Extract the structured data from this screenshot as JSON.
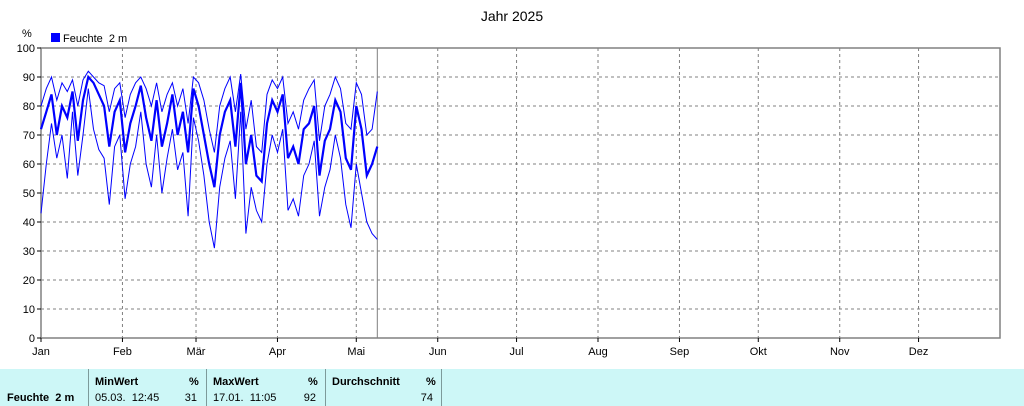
{
  "chart_data": {
    "type": "line",
    "title": "Jahr 2025",
    "ylabel": "%",
    "ylim": [
      0,
      100
    ],
    "yticks": [
      0,
      10,
      20,
      30,
      40,
      50,
      60,
      70,
      80,
      90,
      100
    ],
    "xlim": [
      0,
      365
    ],
    "xticks": [
      {
        "day": 0,
        "label": "Jan"
      },
      {
        "day": 31,
        "label": "Feb"
      },
      {
        "day": 59,
        "label": "Mär"
      },
      {
        "day": 90,
        "label": "Apr"
      },
      {
        "day": 120,
        "label": "Mai"
      },
      {
        "day": 151,
        "label": "Jun"
      },
      {
        "day": 181,
        "label": "Jul"
      },
      {
        "day": 212,
        "label": "Aug"
      },
      {
        "day": 243,
        "label": "Sep"
      },
      {
        "day": 273,
        "label": "Okt"
      },
      {
        "day": 304,
        "label": "Nov"
      },
      {
        "day": 334,
        "label": "Dez"
      }
    ],
    "grid": true,
    "legend": "top-left",
    "current_day_marker": 128,
    "series": [
      {
        "name": "Feuchte  2 m",
        "color": "#0000ff",
        "x": [
          0,
          2,
          4,
          6,
          8,
          10,
          12,
          14,
          16,
          18,
          20,
          22,
          24,
          26,
          28,
          30,
          32,
          34,
          36,
          38,
          40,
          42,
          44,
          46,
          48,
          50,
          52,
          54,
          56,
          58,
          60,
          62,
          64,
          66,
          68,
          70,
          72,
          74,
          76,
          78,
          80,
          82,
          84,
          86,
          88,
          90,
          92,
          94,
          96,
          98,
          100,
          102,
          104,
          106,
          108,
          110,
          112,
          114,
          116,
          118,
          120,
          122,
          124,
          126,
          128
        ],
        "avg": [
          72,
          78,
          84,
          70,
          80,
          76,
          85,
          68,
          82,
          90,
          88,
          84,
          80,
          66,
          78,
          82,
          64,
          74,
          80,
          87,
          76,
          68,
          82,
          66,
          74,
          84,
          70,
          78,
          64,
          86,
          80,
          70,
          60,
          52,
          70,
          78,
          82,
          66,
          88,
          60,
          70,
          56,
          54,
          74,
          82,
          78,
          84,
          62,
          66,
          60,
          72,
          74,
          80,
          56,
          68,
          72,
          82,
          78,
          62,
          58,
          80,
          72,
          56,
          60,
          66
        ],
        "max": [
          80,
          86,
          90,
          82,
          88,
          85,
          89,
          80,
          89,
          92,
          90,
          88,
          87,
          78,
          86,
          88,
          76,
          84,
          88,
          90,
          86,
          80,
          88,
          78,
          84,
          88,
          80,
          86,
          74,
          90,
          88,
          82,
          72,
          64,
          80,
          86,
          90,
          78,
          91,
          72,
          82,
          66,
          64,
          84,
          89,
          86,
          90,
          74,
          78,
          72,
          82,
          86,
          89,
          68,
          80,
          84,
          90,
          86,
          74,
          72,
          88,
          84,
          70,
          72,
          85
        ],
        "min": [
          43,
          60,
          74,
          62,
          70,
          55,
          78,
          56,
          70,
          86,
          72,
          65,
          62,
          46,
          66,
          70,
          48,
          60,
          66,
          78,
          60,
          52,
          70,
          50,
          62,
          72,
          58,
          64,
          42,
          76,
          68,
          56,
          40,
          31,
          52,
          62,
          68,
          48,
          78,
          36,
          52,
          44,
          40,
          60,
          70,
          64,
          72,
          44,
          48,
          42,
          56,
          60,
          68,
          42,
          52,
          58,
          70,
          62,
          46,
          38,
          60,
          50,
          40,
          36,
          34
        ]
      }
    ]
  },
  "stats": {
    "series_label": "Feuchte  2 m",
    "min": {
      "header": "MinWert",
      "unit": "%",
      "when": "05.03.  12:45",
      "value": "31"
    },
    "max": {
      "header": "MaxWert",
      "unit": "%",
      "when": "17.01.  11:05",
      "value": "92"
    },
    "avg": {
      "header": "Durchschnitt",
      "unit": "%",
      "value": "74"
    }
  }
}
